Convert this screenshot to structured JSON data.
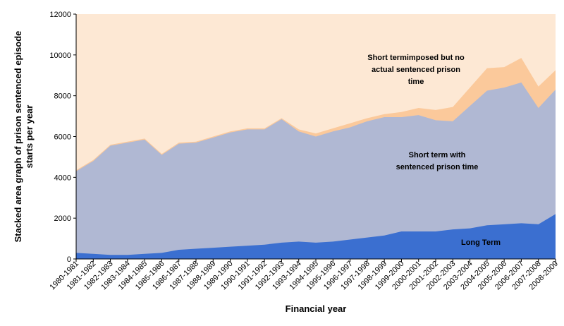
{
  "chart_data": {
    "type": "area",
    "stacked": true,
    "title": "",
    "xlabel": "Financial year",
    "ylabel": "Stacked area graph of prison sentenced episode starts per year",
    "ylim": [
      0,
      12000
    ],
    "yticks": [
      0,
      2000,
      4000,
      6000,
      8000,
      10000,
      12000
    ],
    "grid": false,
    "legend": "none",
    "categories": [
      "1980-1981",
      "1981-1982",
      "1982-1983",
      "1983-1984",
      "1984-1985",
      "1985-1986",
      "1986-1987",
      "1987-1988",
      "1988-1989",
      "1989-1990",
      "1990-1991",
      "1991-1992",
      "1992-1993",
      "1993-1994",
      "1994-1995",
      "1995-1996",
      "1996-1997",
      "1997-1998",
      "1998-1999",
      "1999-2000",
      "2000-2001",
      "2001-2002",
      "2002-2003",
      "2003-2004",
      "2004-2005",
      "2005-2006",
      "2006-2007",
      "2007-2008",
      "2008-2009"
    ],
    "series": [
      {
        "name": "Long Term",
        "color": "#3b6fd0",
        "values": [
          300,
          250,
          200,
          200,
          250,
          300,
          450,
          500,
          550,
          600,
          650,
          700,
          800,
          850,
          800,
          850,
          950,
          1050,
          1150,
          1350,
          1350,
          1350,
          1450,
          1500,
          1650,
          1700,
          1750,
          1700,
          2200
        ]
      },
      {
        "name": "Short term with sentenced prison time",
        "color": "#b0b8d3",
        "values": [
          4000,
          4550,
          5350,
          5500,
          5600,
          4800,
          5200,
          5200,
          5400,
          5600,
          5700,
          5650,
          6050,
          5400,
          5200,
          5400,
          5500,
          5700,
          5800,
          5600,
          5700,
          5450,
          5300,
          6000,
          6600,
          6700,
          6900,
          5700,
          6100
        ]
      },
      {
        "name": "Short term imposed but no actual sentenced prison time",
        "color": "#fbc99b",
        "values": [
          50,
          50,
          50,
          50,
          50,
          50,
          50,
          50,
          50,
          50,
          50,
          50,
          50,
          100,
          150,
          150,
          200,
          150,
          150,
          250,
          350,
          500,
          700,
          900,
          1100,
          1000,
          1200,
          1050,
          950
        ]
      }
    ],
    "background_color": "#fde8d4",
    "series_labels": [
      {
        "series": 0,
        "lines": [
          "Long Term"
        ]
      },
      {
        "series": 1,
        "lines": [
          "Short term with",
          "sentenced prison time"
        ]
      },
      {
        "series": 2,
        "lines": [
          "Short termimposed but no",
          "actual sentenced prison",
          "time"
        ]
      }
    ]
  }
}
